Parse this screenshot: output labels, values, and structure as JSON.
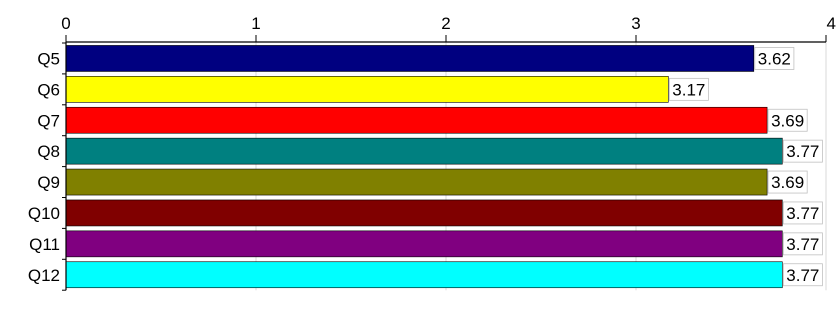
{
  "chart_data": {
    "type": "bar",
    "orientation": "horizontal",
    "categories": [
      "Q5",
      "Q6",
      "Q7",
      "Q8",
      "Q9",
      "Q10",
      "Q11",
      "Q12"
    ],
    "values": [
      3.62,
      3.17,
      3.69,
      3.77,
      3.69,
      3.77,
      3.77,
      3.77
    ],
    "data_labels": [
      "3.62",
      "3.17",
      "3.69",
      "3.77",
      "3.69",
      "3.77",
      "3.77",
      "3.77"
    ],
    "bar_colors": [
      "#000080",
      "#FFFF00",
      "#FF0000",
      "#008080",
      "#808000",
      "#800000",
      "#800080",
      "#00FFFF"
    ],
    "xlim": [
      0,
      4
    ],
    "xticks": [
      0,
      1,
      2,
      3,
      4
    ],
    "xtick_labels": [
      "0",
      "1",
      "2",
      "3",
      "4"
    ],
    "x_axis_position": "top",
    "grid": true,
    "grid_color": "#d9d9d9",
    "title": "",
    "xlabel": "",
    "ylabel": "",
    "legend": false
  }
}
